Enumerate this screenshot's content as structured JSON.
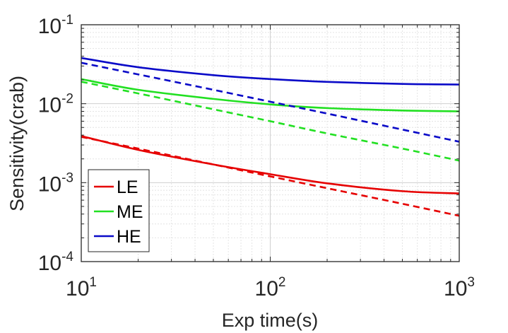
{
  "chart_data": {
    "type": "line",
    "title": "",
    "xlabel": "Exp time(s)",
    "ylabel": "Sensitivity(crab)",
    "xscale": "log",
    "yscale": "log",
    "xlim": [
      10,
      1000
    ],
    "ylim": [
      0.0001,
      0.1
    ],
    "grid": true,
    "legend_placement": "bottom-left",
    "x_ticks": [
      {
        "base": "10",
        "exp": "1",
        "value": 10
      },
      {
        "base": "10",
        "exp": "2",
        "value": 100
      },
      {
        "base": "10",
        "exp": "3",
        "value": 1000
      }
    ],
    "y_ticks": [
      {
        "base": "10",
        "exp": "-4",
        "value": 0.0001
      },
      {
        "base": "10",
        "exp": "-3",
        "value": 0.001
      },
      {
        "base": "10",
        "exp": "-2",
        "value": 0.01
      },
      {
        "base": "10",
        "exp": "-1",
        "value": 0.1
      }
    ],
    "x": [
      10,
      20,
      50,
      100,
      200,
      500,
      1000
    ],
    "series": [
      {
        "name": "LE",
        "style": "solid",
        "color": "#e60000",
        "values": [
          0.0039,
          0.0026,
          0.0017,
          0.00128,
          0.00098,
          0.00078,
          0.00073
        ]
      },
      {
        "name": "",
        "style": "dashed",
        "color": "#e60000",
        "values": [
          0.0038,
          0.0027,
          0.0017,
          0.0012,
          0.00085,
          0.00054,
          0.00038
        ]
      },
      {
        "name": "ME",
        "style": "solid",
        "color": "#22e022",
        "values": [
          0.0205,
          0.015,
          0.0115,
          0.0098,
          0.0088,
          0.0082,
          0.008
        ]
      },
      {
        "name": "",
        "style": "dashed",
        "color": "#22e022",
        "values": [
          0.019,
          0.0135,
          0.0085,
          0.006,
          0.0042,
          0.0027,
          0.0019
        ]
      },
      {
        "name": "HE",
        "style": "solid",
        "color": "#0a0ac8",
        "values": [
          0.038,
          0.029,
          0.023,
          0.0205,
          0.0189,
          0.0178,
          0.0175
        ]
      },
      {
        "name": "",
        "style": "dashed",
        "color": "#0a0ac8",
        "values": [
          0.033,
          0.0235,
          0.015,
          0.0106,
          0.0075,
          0.0047,
          0.0033
        ]
      }
    ],
    "legend": [
      {
        "label": "LE",
        "color": "#e60000"
      },
      {
        "label": "ME",
        "color": "#22e022"
      },
      {
        "label": "HE",
        "color": "#0a0ac8"
      }
    ]
  }
}
